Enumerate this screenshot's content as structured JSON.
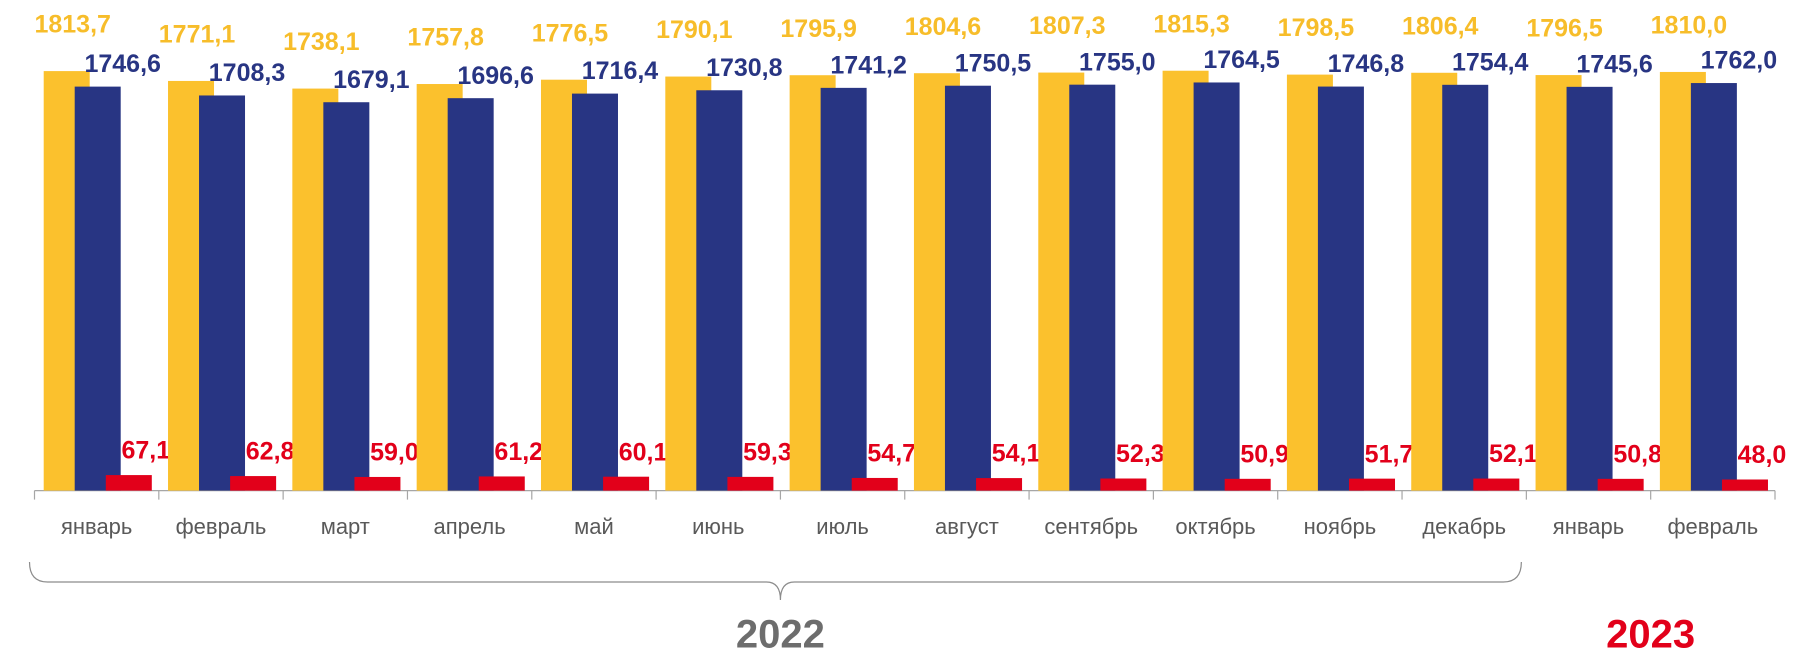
{
  "chart_data": {
    "type": "bar",
    "categories": [
      "январь",
      "февраль",
      "март",
      "апрель",
      "май",
      "июнь",
      "июль",
      "август",
      "сентябрь",
      "октябрь",
      "ноябрь",
      "декабрь",
      "январь",
      "февраль"
    ],
    "series": [
      {
        "color": "#fbc12d",
        "label_color": "#f7bd2a",
        "values": [
          1813.7,
          1771.1,
          1738.1,
          1757.8,
          1776.5,
          1790.1,
          1795.9,
          1804.6,
          1807.3,
          1815.3,
          1798.5,
          1806.4,
          1796.5,
          1810.0
        ],
        "value_labels": [
          "1813,7",
          "1771,1",
          "1738,1",
          "1757,8",
          "1776,5",
          "1790,1",
          "1795,9",
          "1804,6",
          "1807,3",
          "1815,3",
          "1798,5",
          "1806,4",
          "1796,5",
          "1810,0"
        ]
      },
      {
        "color": "#283583",
        "label_color": "#283583",
        "values": [
          1746.6,
          1708.3,
          1679.1,
          1696.6,
          1716.4,
          1730.8,
          1741.2,
          1750.5,
          1755.0,
          1764.5,
          1746.8,
          1754.4,
          1745.6,
          1762.0
        ],
        "value_labels": [
          "1746,6",
          "1708,3",
          "1679,1",
          "1696,6",
          "1716,4",
          "1730,8",
          "1741,2",
          "1750,5",
          "1755,0",
          "1764,5",
          "1746,8",
          "1754,4",
          "1745,6",
          "1762,0"
        ]
      },
      {
        "color": "#e2001a",
        "label_color": "#e2001a",
        "values": [
          67.1,
          62.8,
          59.0,
          61.2,
          60.1,
          59.3,
          54.7,
          54.1,
          52.3,
          50.9,
          51.7,
          52.1,
          50.8,
          48.0
        ],
        "value_labels": [
          "67,1",
          "62,8",
          "59,0",
          "61,2",
          "60,1",
          "59,3",
          "54,7",
          "54,1",
          "52,3",
          "50,9",
          "51,7",
          "52,1",
          "50,8",
          "48,0"
        ]
      }
    ],
    "ylim": [
      0,
      2000
    ],
    "groups": [
      {
        "label": "2022",
        "categories": 12,
        "color": "#6d6d6d",
        "brace": true
      },
      {
        "label": "2023",
        "categories": 2,
        "color": "#e2001a",
        "brace": false
      }
    ]
  }
}
